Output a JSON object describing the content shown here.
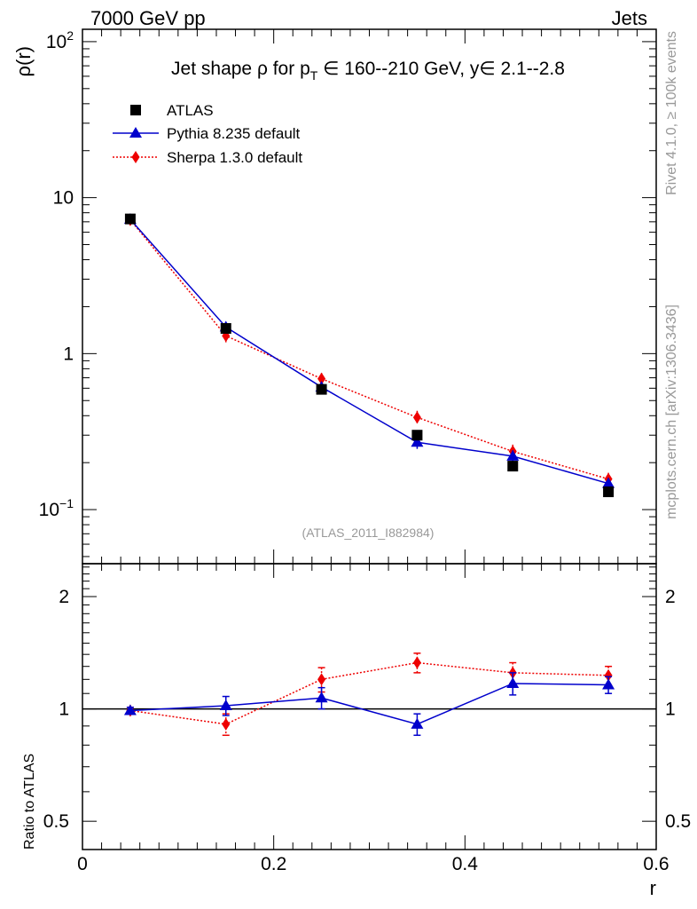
{
  "header": {
    "left": "7000 GeV pp",
    "right": "Jets"
  },
  "side_labels": {
    "rivet": "Rivet 4.1.0, ≥ 100k events",
    "mcplots": "mcplots.cern.ch [arXiv:1306.3436]"
  },
  "chart_data": {
    "type": "scatter",
    "title": "Jet shape ρ for p_T ∈ 160--210 GeV, y∈ 2.1--2.8",
    "title_parts": {
      "prefix": "Jet shape ρ for p",
      "sub": "T",
      "suffix": " ∈ 160--210 GeV, y∈ 2.1--2.8"
    },
    "analysis_label": "(ATLAS_2011_I882984)",
    "xlabel": "r",
    "xlim": [
      0,
      0.6
    ],
    "x_ticks": [
      {
        "v": 0,
        "label": "0"
      },
      {
        "v": 0.2,
        "label": "0.2"
      },
      {
        "v": 0.4,
        "label": "0.4"
      },
      {
        "v": 0.6,
        "label": "0.6"
      }
    ],
    "main": {
      "ylabel": "ρ(r)",
      "yscale": "log",
      "ylim": [
        0.045,
        120
      ],
      "y_ticks": [
        {
          "v": 0.1,
          "base": "10",
          "exp": "−1"
        },
        {
          "v": 1,
          "base": "1",
          "exp": ""
        },
        {
          "v": 10,
          "base": "10",
          "exp": ""
        },
        {
          "v": 100,
          "base": "10",
          "exp": "2"
        }
      ]
    },
    "ratio": {
      "ylabel": "Ratio to ATLAS",
      "yscale": "log",
      "ylim": [
        0.42,
        2.45
      ],
      "y_ticks": [
        {
          "v": 0.5,
          "label": "0.5"
        },
        {
          "v": 1,
          "label": "1"
        },
        {
          "v": 2,
          "label": "2"
        }
      ]
    },
    "legend_position": "top-left",
    "x": [
      0.05,
      0.15,
      0.25,
      0.35,
      0.45,
      0.55
    ],
    "series": [
      {
        "name": "ATLAS",
        "marker": "square",
        "color": "#000000",
        "line": "none",
        "values": [
          7.3,
          1.45,
          0.59,
          0.3,
          0.19,
          0.13
        ],
        "errors": [
          0.25,
          0.08,
          0.03,
          0.015,
          0.012,
          0.008
        ],
        "ratio": [
          1,
          1,
          1,
          1,
          1,
          1
        ],
        "ratio_err": [
          0,
          0,
          0,
          0,
          0,
          0
        ]
      },
      {
        "name": "Pythia 8.235 default",
        "marker": "triangle",
        "color": "#0000cc",
        "line": "solid",
        "values": [
          7.25,
          1.48,
          0.61,
          0.27,
          0.22,
          0.147
        ],
        "errors": [
          0.2,
          0.1,
          0.04,
          0.025,
          0.02,
          0.012
        ],
        "ratio": [
          0.99,
          1.02,
          1.07,
          0.91,
          1.17,
          1.16
        ],
        "ratio_err": [
          0.02,
          0.06,
          0.07,
          0.06,
          0.08,
          0.06
        ]
      },
      {
        "name": "Sherpa 1.3.0 default",
        "marker": "diamond",
        "color": "#ee0000",
        "line": "dotted",
        "values": [
          7.2,
          1.3,
          0.69,
          0.39,
          0.236,
          0.157
        ],
        "errors": [
          0.2,
          0.12,
          0.06,
          0.04,
          0.025,
          0.015
        ],
        "ratio": [
          0.99,
          0.91,
          1.2,
          1.33,
          1.25,
          1.23
        ],
        "ratio_err": [
          0.02,
          0.06,
          0.09,
          0.08,
          0.08,
          0.07
        ]
      }
    ]
  }
}
